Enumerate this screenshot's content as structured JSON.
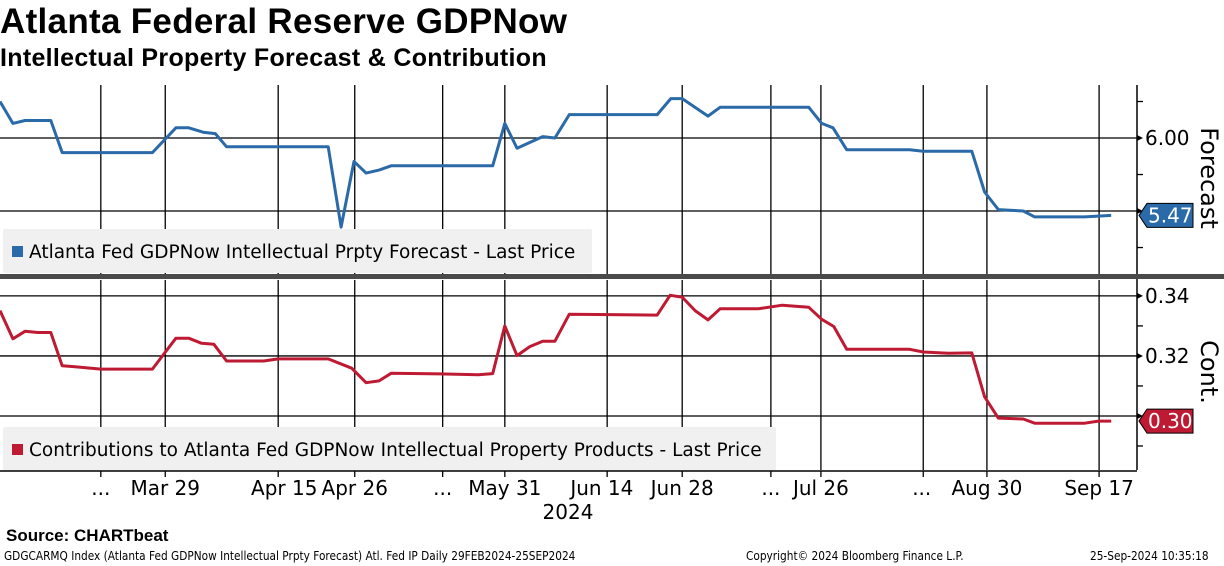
{
  "header": {
    "title": "Atlanta Federal Reserve GDPNow",
    "subtitle": "Intellectual Property Forecast & Contribution"
  },
  "footer": {
    "source": "Source: CHARTbeat",
    "ticker_info": "GDGCARMQ Index (Atlanta Fed GDPNow Intellectual Prpty Forecast) Atl. Fed IP  Daily 29FEB2024-25SEP2024",
    "copyright": "Copyright© 2024 Bloomberg Finance L.P.",
    "timestamp": "25-Sep-2024 10:35:18"
  },
  "colors": {
    "forecast": "#2b6aa8",
    "contribution": "#bf1a33",
    "legend_bg": "#f0f0f0",
    "separator": "#4a4a4a"
  },
  "chart_data": [
    {
      "type": "line",
      "panel": "top",
      "axis_title": "Forecast",
      "legend": "Atlanta Fed GDPNow Intellectual Prpty Forecast - Last Price",
      "last_value_label": "5.47",
      "ylim": [
        5.062,
        6.363
      ],
      "yticks": [
        {
          "v": 6.0,
          "label": "6.00"
        },
        {
          "v": 5.5,
          "label": ""
        }
      ],
      "minor_yticks": [
        6.25,
        5.75,
        5.25
      ],
      "x": [
        0,
        1.7,
        3.3,
        6.7,
        8.2,
        20.1,
        23.2,
        24.9,
        26.8,
        28.4,
        29.9,
        43.3,
        45,
        46.7,
        48.3,
        50,
        51.6,
        65,
        66.6,
        68.2,
        71.6,
        73.2,
        75.1,
        86.7,
        88.5,
        90,
        93.4,
        95,
        106.7,
        108.4,
        109.9,
        111.7,
        120,
        121.8,
        128.2,
        129.9,
        131.7,
        135,
        136.5,
        143.1,
        146.6
      ],
      "values": [
        6.25,
        6.1,
        6.12,
        6.12,
        5.9,
        5.9,
        6.07,
        6.07,
        6.04,
        6.03,
        5.94,
        5.94,
        5.39,
        5.84,
        5.76,
        5.78,
        5.81,
        5.81,
        6.1,
        5.93,
        6.01,
        6.0,
        6.16,
        6.16,
        6.27,
        6.27,
        6.15,
        6.21,
        6.21,
        6.1,
        6.07,
        5.92,
        5.92,
        5.91,
        5.91,
        5.63,
        5.51,
        5.5,
        5.46,
        5.46,
        5.47
      ]
    },
    {
      "type": "line",
      "panel": "bottom",
      "axis_title": "Cont.",
      "legend": "Contributions to Atlanta Fed GDPNow Intellectual Property Products - Last Price",
      "last_value_label": "0.30",
      "ylim": [
        0.282,
        0.3453
      ],
      "yticks": [
        {
          "v": 0.34,
          "label": "0.34"
        },
        {
          "v": 0.32,
          "label": "0.32"
        },
        {
          "v": 0.3,
          "label": ""
        }
      ],
      "minor_yticks": [
        0.33,
        0.31,
        0.29
      ],
      "x": [
        0,
        1.7,
        3.3,
        5,
        6.7,
        8.2,
        9.9,
        13.3,
        20.1,
        23.2,
        24.9,
        26.6,
        28.2,
        29.9,
        34.8,
        36.7,
        43.3,
        46.4,
        48.3,
        50,
        51.6,
        58,
        63.1,
        65,
        66.6,
        68.2,
        69.9,
        71.6,
        73.2,
        75.1,
        86.7,
        88.4,
        90,
        91.7,
        93.4,
        95,
        100,
        103.2,
        106.7,
        108.4,
        110,
        111.7,
        120,
        121.8,
        125.1,
        128.2,
        129.9,
        131.7,
        135,
        136.5,
        143.1,
        144.9,
        146.6
      ],
      "values": [
        0.3351,
        0.3257,
        0.3282,
        0.3278,
        0.3278,
        0.3167,
        0.3164,
        0.3156,
        0.3156,
        0.3259,
        0.3259,
        0.3242,
        0.3239,
        0.3183,
        0.3183,
        0.319,
        0.319,
        0.3159,
        0.3111,
        0.3117,
        0.3142,
        0.314,
        0.3137,
        0.3141,
        0.33,
        0.3201,
        0.3231,
        0.3249,
        0.3249,
        0.3339,
        0.3336,
        0.3402,
        0.3396,
        0.3351,
        0.332,
        0.3357,
        0.3357,
        0.3369,
        0.3362,
        0.3322,
        0.3298,
        0.3222,
        0.3222,
        0.3213,
        0.3209,
        0.321,
        0.3064,
        0.2993,
        0.299,
        0.2976,
        0.2976,
        0.2983,
        0.2983
      ]
    }
  ],
  "x_axis": {
    "xlim": [
      0,
      150
    ],
    "year_label": "2024",
    "ticks": [
      {
        "x": 13.3,
        "label": "..."
      },
      {
        "x": 21.8,
        "label": "Mar 29"
      },
      {
        "x": 37.5,
        "label": "Apr 15"
      },
      {
        "x": 46.8,
        "label": "Apr 26"
      },
      {
        "x": 58.4,
        "label": "..."
      },
      {
        "x": 66.6,
        "label": "May 31"
      },
      {
        "x": 79.4,
        "label": "Jun 14"
      },
      {
        "x": 90.0,
        "label": "Jun 28"
      },
      {
        "x": 101.7,
        "label": "..."
      },
      {
        "x": 108.3,
        "label": "Jul 26"
      },
      {
        "x": 121.6,
        "label": "..."
      },
      {
        "x": 130.2,
        "label": "Aug 30"
      },
      {
        "x": 145.0,
        "label": "Sep 17"
      }
    ],
    "gridlines": [
      13.3,
      21.8,
      36.7,
      46.8,
      58.4,
      66.6,
      80.1,
      90.0,
      101.7,
      108.3,
      121.8,
      130.2,
      145.0
    ]
  }
}
